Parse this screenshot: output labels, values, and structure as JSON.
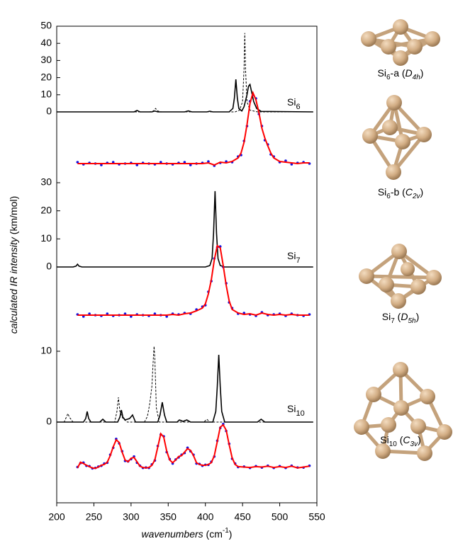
{
  "axes": {
    "xlim": [
      200,
      550
    ],
    "xticks": [
      200,
      250,
      300,
      350,
      400,
      450,
      500,
      550
    ],
    "x_label": [
      "wavenumbers",
      " (cm",
      "-1",
      ")"
    ],
    "y_label": [
      "calculated IR intensity",
      " (km/mol)"
    ]
  },
  "chart_data": [
    {
      "type": "line",
      "label": [
        "Si",
        "6"
      ],
      "ylim": [
        0,
        50
      ],
      "yticks": [
        0,
        10,
        20,
        30,
        40,
        50
      ],
      "series": [
        {
          "style": "solid",
          "color": "#000000",
          "x": [
            200,
            304,
            308,
            312,
            328,
            332,
            336,
            372,
            377,
            382,
            402,
            406,
            410,
            432,
            437,
            439,
            441,
            443,
            445,
            449,
            452,
            456,
            458,
            460,
            462,
            465,
            469,
            475,
            545
          ],
          "values": [
            0,
            0,
            0.8,
            0,
            0,
            0.5,
            0,
            0,
            0.6,
            0,
            0,
            0.4,
            0,
            0,
            2,
            8,
            19,
            8,
            2,
            0.5,
            3,
            10,
            15,
            16,
            12,
            6,
            2,
            0.3,
            0
          ]
        },
        {
          "style": "dashed",
          "color": "#000000",
          "x": [
            200,
            325,
            330,
            333,
            336,
            341,
            440,
            446,
            450,
            452,
            453,
            454,
            456,
            460,
            470,
            545
          ],
          "values": [
            0,
            0,
            0.5,
            2,
            0.5,
            0,
            0,
            1,
            6,
            25,
            46,
            25,
            6,
            1,
            0,
            0
          ]
        }
      ]
    },
    {
      "type": "scatter",
      "ylim": [
        0,
        1
      ],
      "x": [
        228,
        236,
        244,
        252,
        260,
        268,
        276,
        284,
        292,
        300,
        308,
        316,
        324,
        332,
        340,
        348,
        356,
        364,
        372,
        380,
        388,
        396,
        404,
        412,
        420,
        428,
        436,
        444,
        448,
        452,
        456,
        460,
        464,
        468,
        472,
        476,
        480,
        484,
        488,
        492,
        500,
        508,
        516,
        524,
        532,
        540
      ],
      "series": [
        {
          "style": "dots",
          "color": "#1010e0",
          "values": [
            0.02,
            -0.01,
            0.01,
            0,
            -0.02,
            0.01,
            0.02,
            -0.01,
            0,
            0.01,
            -0.02,
            0.01,
            0,
            -0.01,
            0.02,
            0,
            -0.01,
            0.01,
            0.02,
            -0.02,
            0,
            0.01,
            0.03,
            -0.03,
            0.01,
            0.03,
            0.02,
            0.1,
            0.12,
            0.32,
            0.53,
            0.88,
            0.97,
            0.92,
            0.7,
            0.53,
            0.33,
            0.27,
            0.13,
            0.1,
            0.02,
            0.04,
            -0.01,
            0.01,
            0.02,
            0
          ]
        },
        {
          "style": "line",
          "color": "#ff0000",
          "values": [
            0,
            0,
            0,
            0,
            0,
            0,
            0,
            0,
            0,
            0,
            0,
            0,
            0,
            0,
            0,
            0,
            0,
            0,
            0,
            0,
            0,
            0,
            0.01,
            -0.02,
            0.02,
            0.01,
            0.03,
            0.08,
            0.15,
            0.3,
            0.55,
            0.85,
            1.0,
            0.9,
            0.72,
            0.5,
            0.36,
            0.25,
            0.15,
            0.08,
            0.03,
            0.02,
            0.01,
            0,
            0.01,
            0.01
          ]
        }
      ]
    },
    {
      "type": "line",
      "label": [
        "Si",
        "7"
      ],
      "ylim": [
        0,
        30
      ],
      "yticks": [
        0,
        10,
        20,
        30
      ],
      "series": [
        {
          "style": "solid",
          "color": "#000000",
          "x": [
            200,
            222,
            226,
            228,
            230,
            234,
            400,
            406,
            409,
            411,
            413,
            415,
            417,
            420,
            426,
            545
          ],
          "values": [
            0,
            0,
            0.3,
            1,
            0.3,
            0,
            0,
            0.5,
            3,
            12,
            27,
            12,
            3,
            0.5,
            0,
            0
          ]
        }
      ]
    },
    {
      "type": "scatter",
      "ylim": [
        0,
        1
      ],
      "x": [
        228,
        236,
        244,
        252,
        260,
        268,
        276,
        284,
        292,
        300,
        308,
        316,
        324,
        332,
        340,
        348,
        356,
        364,
        372,
        380,
        388,
        396,
        400,
        404,
        408,
        412,
        416,
        420,
        424,
        428,
        432,
        436,
        444,
        452,
        460,
        468,
        476,
        484,
        492,
        500,
        508,
        516,
        524,
        532,
        540
      ],
      "series": [
        {
          "style": "dots",
          "color": "#1010e0",
          "values": [
            0.01,
            -0.02,
            0.02,
            0,
            -0.01,
            0.02,
            -0.01,
            0,
            0.02,
            -0.02,
            0.01,
            0,
            -0.01,
            0.02,
            0,
            -0.02,
            0.02,
            0.01,
            0.03,
            0.02,
            0.08,
            0.12,
            0.14,
            0.33,
            0.48,
            0.8,
            0.96,
            0.97,
            0.68,
            0.45,
            0.18,
            0.1,
            0.02,
            0.03,
            0.01,
            -0.01,
            0.04,
            0,
            0.01,
            0.02,
            -0.01,
            0.02,
            0,
            -0.01,
            0.01
          ]
        },
        {
          "style": "line",
          "color": "#ff0000",
          "values": [
            0,
            0,
            0,
            0,
            0,
            0,
            0,
            0,
            0,
            0,
            0,
            0,
            0,
            0,
            0,
            0,
            0.01,
            0,
            0.02,
            0.03,
            0.06,
            0.1,
            0.16,
            0.3,
            0.5,
            0.78,
            0.98,
            0.95,
            0.7,
            0.42,
            0.2,
            0.08,
            0.03,
            0.01,
            0.02,
            0,
            0.03,
            0.01,
            0,
            0.01,
            0,
            0.01,
            0,
            0,
            0
          ]
        }
      ]
    },
    {
      "type": "line",
      "label": [
        "Si",
        "10"
      ],
      "ylim": [
        0,
        11
      ],
      "yticks": [
        0,
        10
      ],
      "series": [
        {
          "style": "solid",
          "color": "#000000",
          "x": [
            200,
            236,
            239,
            241,
            243,
            246,
            258,
            262,
            266,
            282,
            285,
            287,
            289,
            292,
            298,
            302,
            306,
            336,
            339,
            342,
            345,
            348,
            362,
            365,
            370,
            375,
            380,
            410,
            414,
            416,
            418,
            420,
            422,
            426,
            470,
            475,
            480,
            545
          ],
          "values": [
            0,
            0,
            0.5,
            1.5,
            0.5,
            0,
            0,
            0.4,
            0,
            0,
            0.7,
            1.7,
            0.7,
            0.3,
            0.5,
            1.0,
            0,
            0,
            1.0,
            2.8,
            1.0,
            0,
            0,
            0.3,
            0.1,
            0.3,
            0,
            0,
            1.5,
            5,
            9.5,
            5,
            1.5,
            0,
            0,
            0.4,
            0,
            0
          ]
        },
        {
          "style": "dashed",
          "color": "#000000",
          "x": [
            200,
            210,
            213,
            215,
            217,
            222,
            278,
            281,
            283,
            285,
            289,
            295,
            318,
            322,
            325,
            328,
            330,
            331,
            332,
            334,
            338,
            398,
            402,
            406,
            545
          ],
          "values": [
            0,
            0,
            0.7,
            1.2,
            0.7,
            0,
            0,
            1.5,
            3.5,
            1.5,
            0.5,
            0,
            0,
            0.8,
            2.5,
            5,
            9,
            10.7,
            9,
            2,
            0,
            0,
            0.4,
            0,
            0
          ]
        }
      ]
    },
    {
      "type": "scatter",
      "ylim": [
        0,
        1
      ],
      "x": [
        228,
        232,
        236,
        240,
        244,
        248,
        252,
        256,
        260,
        264,
        268,
        272,
        276,
        280,
        284,
        288,
        292,
        296,
        300,
        304,
        308,
        312,
        316,
        320,
        324,
        328,
        332,
        336,
        340,
        344,
        348,
        352,
        356,
        360,
        364,
        368,
        372,
        376,
        380,
        384,
        388,
        392,
        396,
        400,
        404,
        408,
        412,
        416,
        420,
        424,
        428,
        432,
        436,
        440,
        444,
        452,
        460,
        468,
        476,
        484,
        492,
        500,
        508,
        516,
        524,
        532,
        540
      ],
      "series": [
        {
          "style": "dots",
          "color": "#1010e0",
          "values": [
            0.04,
            0.13,
            0.14,
            0.07,
            0.06,
            0.01,
            0.02,
            0.05,
            0.07,
            0.12,
            0.14,
            0.32,
            0.48,
            0.68,
            0.58,
            0.4,
            0.18,
            0.17,
            0.22,
            0.28,
            0.14,
            0.07,
            0.02,
            0.03,
            0.02,
            0.1,
            0.19,
            0.52,
            0.78,
            0.74,
            0.38,
            0.22,
            0.12,
            0.21,
            0.26,
            0.32,
            0.36,
            0.48,
            0.4,
            0.32,
            0.12,
            0.11,
            0.07,
            0.09,
            0.09,
            0.16,
            0.28,
            0.64,
            0.93,
            1.02,
            0.86,
            0.57,
            0.23,
            0.12,
            0.04,
            0.05,
            0.02,
            0.06,
            0.03,
            0.07,
            0.02,
            0.06,
            0.02,
            0.07,
            0.03,
            0.03,
            0.07
          ]
        },
        {
          "style": "line",
          "color": "#ff0000",
          "values": [
            0.02,
            0.15,
            0.12,
            0.08,
            0.05,
            0.02,
            0.01,
            0.04,
            0.08,
            0.1,
            0.15,
            0.3,
            0.5,
            0.66,
            0.6,
            0.38,
            0.2,
            0.16,
            0.24,
            0.26,
            0.16,
            0.06,
            0.03,
            0.02,
            0.03,
            0.08,
            0.2,
            0.5,
            0.8,
            0.72,
            0.4,
            0.2,
            0.14,
            0.2,
            0.28,
            0.3,
            0.38,
            0.46,
            0.42,
            0.3,
            0.14,
            0.1,
            0.08,
            0.08,
            0.1,
            0.14,
            0.3,
            0.62,
            0.95,
            1.0,
            0.88,
            0.55,
            0.25,
            0.1,
            0.05,
            0.04,
            0.03,
            0.05,
            0.04,
            0.06,
            0.03,
            0.05,
            0.03,
            0.06,
            0.02,
            0.04,
            0.06
          ]
        }
      ]
    }
  ],
  "structures": [
    {
      "caption": [
        "Si",
        "6",
        "-a (",
        "D",
        "4h",
        ")"
      ]
    },
    {
      "caption": [
        "Si",
        "6",
        "-b (",
        "C",
        "2v",
        ")"
      ]
    },
    {
      "caption": [
        "Si",
        "7",
        " (",
        "D",
        "5h",
        ")"
      ]
    },
    {
      "caption": [
        "Si",
        "10",
        " (",
        "C",
        "3v",
        ")"
      ]
    }
  ]
}
